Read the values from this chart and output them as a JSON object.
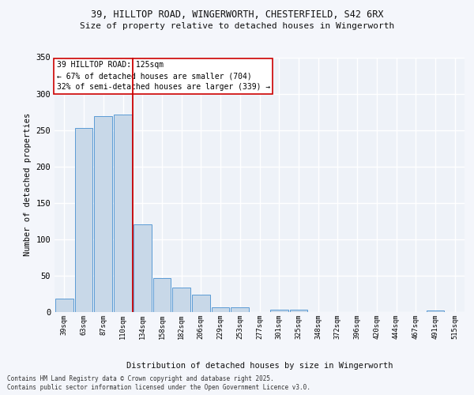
{
  "title_line1": "39, HILLTOP ROAD, WINGERWORTH, CHESTERFIELD, S42 6RX",
  "title_line2": "Size of property relative to detached houses in Wingerworth",
  "xlabel": "Distribution of detached houses by size in Wingerworth",
  "ylabel": "Number of detached properties",
  "categories": [
    "39sqm",
    "63sqm",
    "87sqm",
    "110sqm",
    "134sqm",
    "158sqm",
    "182sqm",
    "206sqm",
    "229sqm",
    "253sqm",
    "277sqm",
    "301sqm",
    "325sqm",
    "348sqm",
    "372sqm",
    "396sqm",
    "420sqm",
    "444sqm",
    "467sqm",
    "491sqm",
    "515sqm"
  ],
  "values": [
    18,
    253,
    269,
    271,
    120,
    47,
    34,
    24,
    7,
    6,
    0,
    3,
    3,
    0,
    0,
    0,
    0,
    0,
    0,
    2,
    0
  ],
  "bar_color": "#c8d8e8",
  "bar_edge_color": "#5b9bd5",
  "ref_line_x": 3.5,
  "annotation_line1": "39 HILLTOP ROAD: 125sqm",
  "annotation_line2": "← 67% of detached houses are smaller (704)",
  "annotation_line3": "32% of semi-detached houses are larger (339) →",
  "ylim": [
    0,
    350
  ],
  "yticks": [
    0,
    50,
    100,
    150,
    200,
    250,
    300,
    350
  ],
  "bg_color": "#eef2f8",
  "grid_color": "#ffffff",
  "footer_line1": "Contains HM Land Registry data © Crown copyright and database right 2025.",
  "footer_line2": "Contains public sector information licensed under the Open Government Licence v3.0."
}
